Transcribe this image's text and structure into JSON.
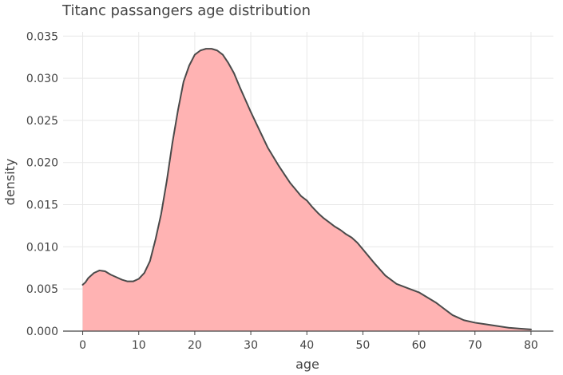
{
  "chart_data": {
    "type": "area",
    "title": "Titanc passangers age distribution",
    "xlabel": "age",
    "ylabel": "density",
    "xlim": [
      -3.5,
      84
    ],
    "ylim": [
      0,
      0.0355
    ],
    "xticks": [
      0,
      10,
      20,
      30,
      40,
      50,
      60,
      70,
      80
    ],
    "yticks": [
      0.0,
      0.005,
      0.01,
      0.015,
      0.02,
      0.025,
      0.03,
      0.035
    ],
    "xtick_labels": [
      "0",
      "10",
      "20",
      "30",
      "40",
      "50",
      "60",
      "70",
      "80"
    ],
    "ytick_labels": [
      "0.000",
      "0.005",
      "0.010",
      "0.015",
      "0.020",
      "0.025",
      "0.030",
      "0.035"
    ],
    "grid": true,
    "legend": false,
    "colors": {
      "fill": "#ffb3b3",
      "line": "#4a4a4a",
      "grid": "#e8e8e8",
      "axis": "#444444",
      "text": "#444444"
    },
    "series": [
      {
        "x": [
          0.0,
          0.5,
          1,
          2,
          3,
          4,
          5,
          6,
          7,
          8,
          9,
          10,
          11,
          12,
          13,
          14,
          15,
          16,
          17,
          18,
          19,
          20,
          21,
          22,
          23,
          24,
          25,
          26,
          27,
          28,
          29,
          30,
          31,
          32,
          33,
          34,
          35,
          36,
          37,
          38,
          39,
          40,
          41,
          42,
          43,
          44,
          45,
          46,
          47,
          48,
          49,
          50,
          52,
          54,
          56,
          58,
          60,
          62,
          63,
          64,
          65,
          66,
          67,
          68,
          70,
          72,
          74,
          76,
          78,
          80
        ],
        "y": [
          0.0055,
          0.0058,
          0.0063,
          0.0069,
          0.0072,
          0.0071,
          0.0067,
          0.0064,
          0.0061,
          0.0059,
          0.0059,
          0.0062,
          0.0069,
          0.0083,
          0.0109,
          0.0139,
          0.0178,
          0.0223,
          0.0262,
          0.0296,
          0.0315,
          0.0328,
          0.0333,
          0.0335,
          0.0335,
          0.0333,
          0.0328,
          0.0318,
          0.0306,
          0.029,
          0.0275,
          0.026,
          0.0246,
          0.0232,
          0.0218,
          0.0207,
          0.0196,
          0.0186,
          0.0176,
          0.0168,
          0.016,
          0.0155,
          0.0147,
          0.014,
          0.0134,
          0.0129,
          0.0124,
          0.012,
          0.0115,
          0.0111,
          0.0105,
          0.0097,
          0.0081,
          0.0066,
          0.0056,
          0.0051,
          0.0046,
          0.0038,
          0.0034,
          0.0029,
          0.0024,
          0.0019,
          0.0016,
          0.0013,
          0.001,
          0.0008,
          0.0006,
          0.0004,
          0.0003,
          0.0002
        ]
      }
    ]
  }
}
